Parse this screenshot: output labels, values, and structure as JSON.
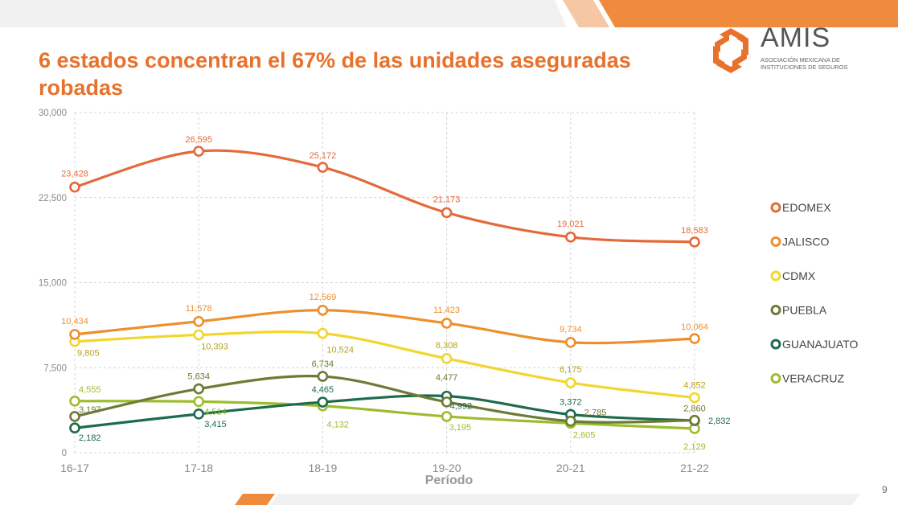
{
  "slide": {
    "title_line1": "6 estados concentran el 67% de las unidades aseguradas",
    "title_line2": "robadas",
    "page_number": "9",
    "accent_color": "#E8712B"
  },
  "logo": {
    "name": "AMIS",
    "subtitle_line1": "ASOCIACIÓN MEXICANA DE",
    "subtitle_line2": "INSTITUCIONES DE SEGUROS"
  },
  "chart_data": {
    "type": "line",
    "title": "6 estados concentran el 67% de las unidades aseguradas robadas",
    "xlabel": "Período",
    "ylabel": "",
    "categories": [
      "16-17",
      "17-18",
      "18-19",
      "19-20",
      "20-21",
      "21-22"
    ],
    "ylim": [
      0,
      30000
    ],
    "yticks": [
      0,
      7500,
      15000,
      22500,
      30000
    ],
    "ytick_labels": [
      "0",
      "7,500",
      "15,000",
      "22,500",
      "30,000"
    ],
    "grid": true,
    "legend_position": "right",
    "series": [
      {
        "name": "EDOMEX",
        "color": "#E36A3A",
        "values": [
          23428,
          26595,
          25172,
          21173,
          19021,
          18583
        ],
        "labels": [
          "23,428",
          "26,595",
          "25,172",
          "21,173",
          "19,021",
          "18,583"
        ]
      },
      {
        "name": "JALISCO",
        "color": "#EE8F2D",
        "values": [
          10434,
          11578,
          12569,
          11423,
          9734,
          10064
        ],
        "labels": [
          "10,434",
          "11,578",
          "12,569",
          "11,423",
          "9,734",
          "10,064"
        ]
      },
      {
        "name": "CDMX",
        "color": "#F2D62E",
        "values": [
          9805,
          10393,
          10524,
          8308,
          6175,
          4852
        ],
        "labels": [
          "9,805",
          "10,393",
          "10,524",
          "8,308",
          "6,175",
          "4,852"
        ]
      },
      {
        "name": "PUEBLA",
        "color": "#6C7B35",
        "values": [
          3197,
          5634,
          6734,
          4477,
          2785,
          2860
        ],
        "labels": [
          "3,197",
          "5,634",
          "6,734",
          "4,477",
          "2,785",
          "2,860"
        ]
      },
      {
        "name": "GUANAJUATO",
        "color": "#1E6B4C",
        "values": [
          2182,
          3415,
          4465,
          4992,
          3372,
          2832
        ],
        "labels": [
          "2,182",
          "3,415",
          "4,465",
          "4,992",
          "3,372",
          "2,832"
        ]
      },
      {
        "name": "VERACRUZ",
        "color": "#9DBD2F",
        "values": [
          4555,
          4514,
          4132,
          3195,
          2605,
          2129
        ],
        "labels": [
          "4,555",
          "4,514",
          "4,132",
          "3,195",
          "2,605",
          "2,129"
        ]
      }
    ]
  }
}
